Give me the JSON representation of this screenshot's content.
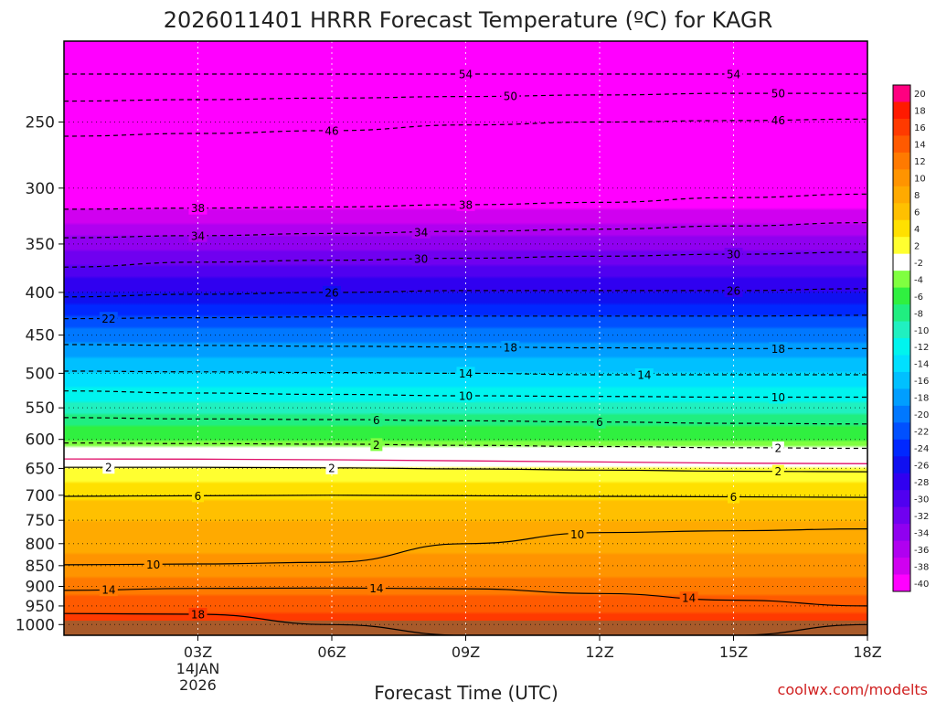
{
  "chart_data": {
    "type": "heatmap",
    "title": "2026011401 HRRR Forecast Temperature (ºC) for KAGR",
    "xlabel": "Forecast Time (UTC)",
    "ylabel": "",
    "credit": "coolwx.com/modelts",
    "x_range_hours": [
      0,
      18
    ],
    "x_ticks": [
      {
        "hour": 3,
        "label": "03Z",
        "sub": [
          "14JAN",
          "2026"
        ]
      },
      {
        "hour": 6,
        "label": "06Z",
        "sub": []
      },
      {
        "hour": 9,
        "label": "09Z",
        "sub": []
      },
      {
        "hour": 12,
        "label": "12Z",
        "sub": []
      },
      {
        "hour": 15,
        "label": "15Z",
        "sub": []
      },
      {
        "hour": 18,
        "label": "18Z",
        "sub": []
      }
    ],
    "y_axis": "pressure (hPa), log scale",
    "y_range_hpa": [
      1030,
      200
    ],
    "y_ticks": [
      250,
      300,
      350,
      400,
      450,
      500,
      550,
      600,
      650,
      700,
      750,
      800,
      850,
      900,
      950,
      1000
    ],
    "colorbar": {
      "labels": [
        "20",
        "18",
        "16",
        "14",
        "12",
        "10",
        "8",
        "6",
        "4",
        "2",
        "-2",
        "-4",
        "-6",
        "-8",
        "-10",
        "-12",
        "-14",
        "-16",
        "-18",
        "-20",
        "-22",
        "-24",
        "-26",
        "-28",
        "-30",
        "-32",
        "-34",
        "-36",
        "-38",
        "-40"
      ],
      "colors": [
        "#ff0080",
        "#ff1a00",
        "#ff3a00",
        "#ff5a00",
        "#ff7a00",
        "#ff9400",
        "#ffaa00",
        "#ffc000",
        "#ffe000",
        "#ffff30",
        "#ffffff",
        "#80ff40",
        "#30f040",
        "#20ee80",
        "#20f0c0",
        "#00f4ee",
        "#00e0ff",
        "#00c0ff",
        "#009eff",
        "#0078ff",
        "#0050ff",
        "#0028ff",
        "#1010f0",
        "#3000f0",
        "#5000f0",
        "#7000f0",
        "#9000f0",
        "#b000f0",
        "#d000f0",
        "#ff00ff"
      ]
    },
    "temperature_profile": [
      {
        "hpa": 1000,
        "t": 18
      },
      {
        "hpa": 950,
        "t": 15
      },
      {
        "hpa": 900,
        "t": 13
      },
      {
        "hpa": 850,
        "t": 10.5
      },
      {
        "hpa": 800,
        "t": 9.5
      },
      {
        "hpa": 750,
        "t": 8
      },
      {
        "hpa": 700,
        "t": 5.5
      },
      {
        "hpa": 650,
        "t": 2
      },
      {
        "hpa": 620,
        "t": 0
      },
      {
        "hpa": 600,
        "t": -4
      },
      {
        "hpa": 550,
        "t": -9
      },
      {
        "hpa": 500,
        "t": -14
      },
      {
        "hpa": 450,
        "t": -19
      },
      {
        "hpa": 400,
        "t": -26
      },
      {
        "hpa": 350,
        "t": -33
      },
      {
        "hpa": 300,
        "t": -41
      },
      {
        "hpa": 250,
        "t": -47
      },
      {
        "hpa": 200,
        "t": -56
      }
    ],
    "contours": [
      {
        "value": -54,
        "hpa": [
          219,
          219,
          219,
          219,
          219,
          219,
          219
        ]
      },
      {
        "value": -50,
        "hpa": [
          236,
          235,
          234,
          233,
          232,
          231,
          231
        ]
      },
      {
        "value": -46,
        "hpa": [
          260,
          258,
          256,
          252,
          250,
          249,
          248
        ]
      },
      {
        "value": -38,
        "hpa": [
          318,
          317,
          316,
          314,
          312,
          308,
          305
        ]
      },
      {
        "value": -34,
        "hpa": [
          344,
          342,
          340,
          338,
          336,
          333,
          330
        ]
      },
      {
        "value": -30,
        "hpa": [
          373,
          368,
          366,
          364,
          362,
          360,
          358
        ]
      },
      {
        "value": -26,
        "hpa": [
          405,
          402,
          400,
          398,
          398,
          398,
          396
        ]
      },
      {
        "value": -22,
        "hpa": [
          430,
          429,
          428,
          427,
          427,
          427,
          426
        ]
      },
      {
        "value": -18,
        "hpa": [
          462,
          463,
          464,
          465,
          466,
          467,
          467
        ]
      },
      {
        "value": -14,
        "hpa": [
          497,
          498,
          499,
          500,
          502,
          502,
          502
        ]
      },
      {
        "value": -10,
        "hpa": [
          525,
          528,
          530,
          532,
          533,
          534,
          534
        ]
      },
      {
        "value": -6,
        "hpa": [
          565,
          567,
          568,
          570,
          572,
          574,
          575
        ]
      },
      {
        "value": -2,
        "hpa": [
          606,
          607,
          608,
          610,
          612,
          614,
          615
        ]
      },
      {
        "value": 2,
        "hpa": [
          648,
          648,
          649,
          651,
          653,
          655,
          656
        ]
      },
      {
        "value": 6,
        "hpa": [
          702,
          701,
          700,
          701,
          702,
          703,
          704
        ]
      },
      {
        "value": 10,
        "hpa": [
          848,
          846,
          842,
          800,
          776,
          772,
          768
        ]
      },
      {
        "value": 14,
        "hpa": [
          910,
          905,
          904,
          906,
          918,
          935,
          950
        ]
      },
      {
        "value": 18,
        "hpa": [
          970,
          972,
          1000,
          1030,
          1030,
          1030,
          1000
        ]
      }
    ],
    "contour_labels": [
      {
        "value": -54,
        "hours": [
          9.0,
          15.0
        ]
      },
      {
        "value": -50,
        "hours": [
          10.0,
          16.0
        ]
      },
      {
        "value": -46,
        "hours": [
          6.0,
          16.0
        ]
      },
      {
        "value": -38,
        "hours": [
          3.0,
          9.0
        ]
      },
      {
        "value": -34,
        "hours": [
          3.0,
          8.0
        ]
      },
      {
        "value": -30,
        "hours": [
          8.0,
          15.0
        ]
      },
      {
        "value": -26,
        "hours": [
          6.0,
          15.0
        ]
      },
      {
        "value": -22,
        "hours": [
          1.0
        ]
      },
      {
        "value": -18,
        "hours": [
          10.0,
          16.0
        ]
      },
      {
        "value": -14,
        "hours": [
          9.0,
          13.0
        ]
      },
      {
        "value": -10,
        "hours": [
          9.0,
          16.0
        ]
      },
      {
        "value": -6,
        "hours": [
          7.0,
          12.0
        ]
      },
      {
        "value": -2,
        "hours": [
          7.0,
          16.0
        ]
      },
      {
        "value": 2,
        "hours": [
          1.0,
          6.0,
          16.0
        ]
      },
      {
        "value": 6,
        "hours": [
          3.0,
          15.0
        ]
      },
      {
        "value": 10,
        "hours": [
          2.0,
          11.5
        ]
      },
      {
        "value": 14,
        "hours": [
          1.0,
          7.0,
          14.0
        ]
      },
      {
        "value": 18,
        "hours": [
          3.0
        ]
      }
    ]
  }
}
